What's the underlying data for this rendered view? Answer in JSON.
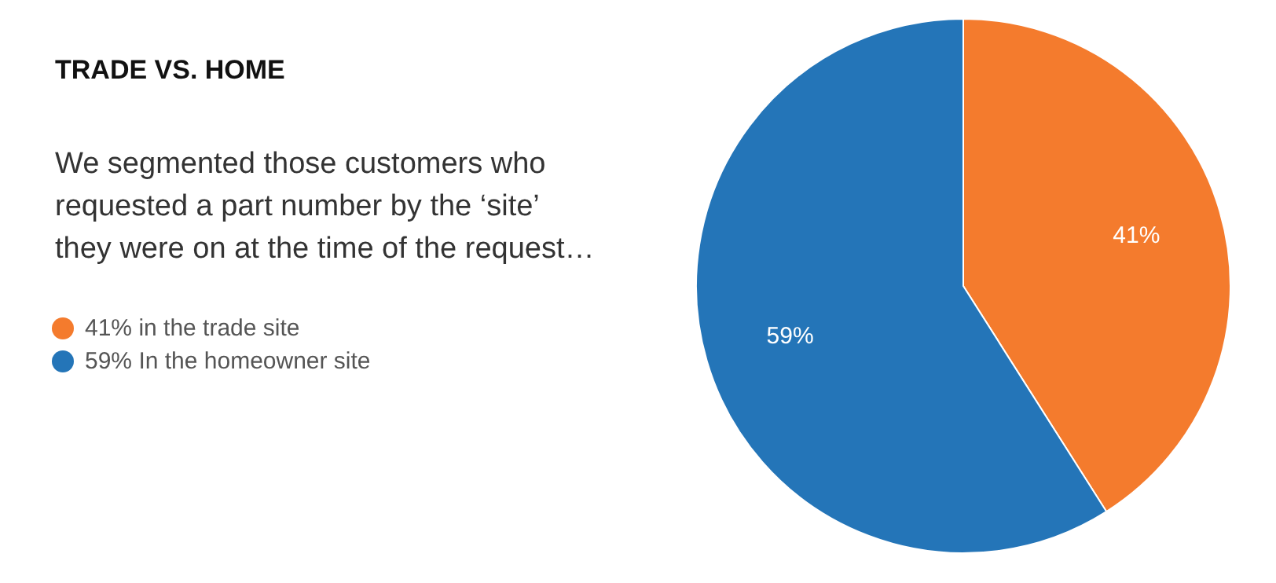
{
  "chart_data": {
    "type": "pie",
    "title": "TRADE VS. HOME",
    "subtitle": "We segmented those customers who requested a part number by the ‘site’ they were on at the time of the request…",
    "categories": [
      "41% in the trade site",
      "59% In the homeowner site"
    ],
    "values": [
      41,
      59
    ],
    "colors": [
      "#f47b2d",
      "#2475b8"
    ],
    "value_labels": [
      "41%",
      "59%"
    ],
    "legend": "left"
  }
}
